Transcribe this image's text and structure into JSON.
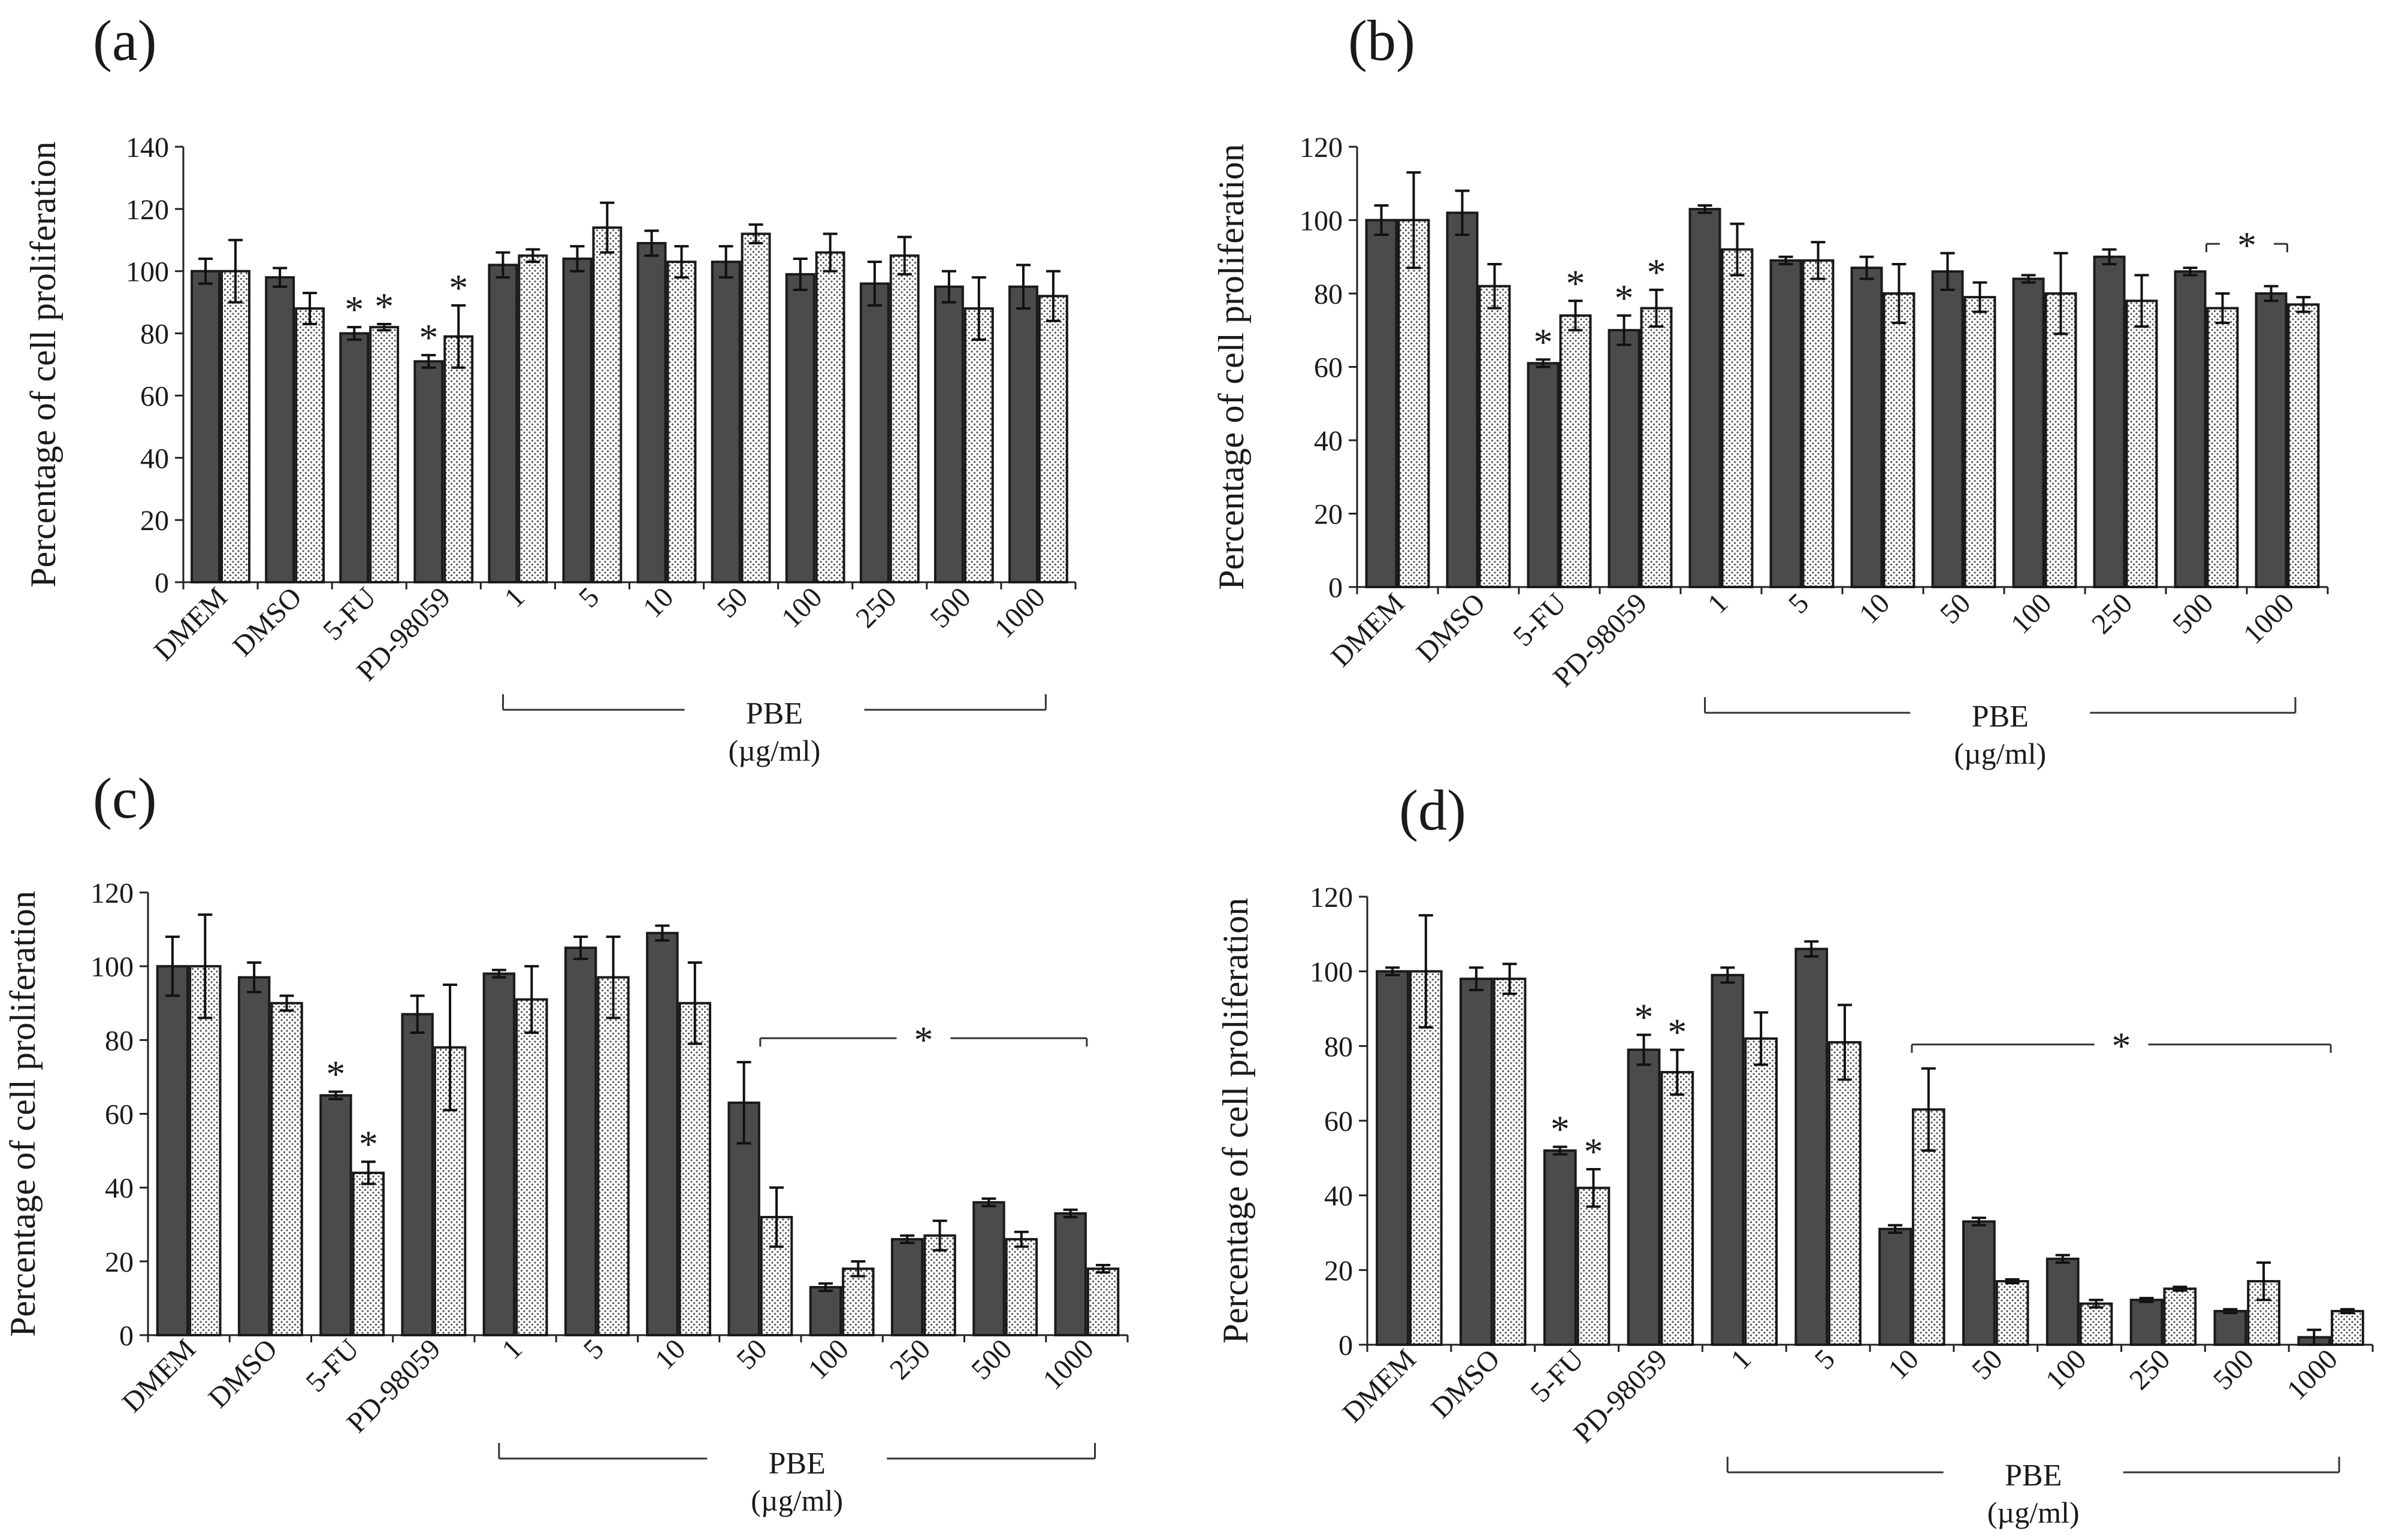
{
  "chart_data": [
    {
      "panel": "(a)",
      "type": "bar",
      "ylabel": "Percentage of cell proliferation",
      "ylim": [
        0,
        140
      ],
      "yticks": [
        "0",
        "20",
        "40",
        "60",
        "80",
        "100",
        "120",
        "140"
      ],
      "categories": [
        "DMEM",
        "DMSO",
        "5-FU",
        "PD-98059",
        "1",
        "5",
        "10",
        "50",
        "100",
        "250",
        "500",
        "1000"
      ],
      "group_label": "PBE",
      "group_unit": "(µg/ml)",
      "series": [
        {
          "style": "dark",
          "values": [
            100,
            98,
            80,
            71,
            102,
            104,
            109,
            103,
            99,
            96,
            95,
            95
          ],
          "errors": [
            4,
            3,
            2,
            2,
            4,
            4,
            4,
            5,
            5,
            7,
            5,
            7
          ]
        },
        {
          "style": "dotted",
          "values": [
            100,
            88,
            82,
            79,
            105,
            114,
            103,
            112,
            106,
            105,
            88,
            92
          ],
          "errors": [
            10,
            5,
            1,
            10,
            2,
            8,
            5,
            3,
            6,
            6,
            10,
            8
          ]
        }
      ],
      "stars": [
        {
          "index": 2,
          "series": 0
        },
        {
          "index": 2,
          "series": 1
        },
        {
          "index": 3,
          "series": 0
        },
        {
          "index": 3,
          "series": 1
        }
      ],
      "star_symbol": "*",
      "significance_bracket": null
    },
    {
      "panel": "(b)",
      "type": "bar",
      "ylabel": "Percentage of cell proliferation",
      "ylim": [
        0,
        120
      ],
      "yticks": [
        "0",
        "20",
        "40",
        "60",
        "80",
        "100",
        "120"
      ],
      "categories": [
        "DMEM",
        "DMSO",
        "5-FU",
        "PD-98059",
        "1",
        "5",
        "10",
        "50",
        "100",
        "250",
        "500",
        "1000"
      ],
      "group_label": "PBE",
      "group_unit": "(µg/ml)",
      "series": [
        {
          "style": "dark",
          "values": [
            100,
            102,
            61,
            70,
            103,
            89,
            87,
            86,
            84,
            90,
            86,
            80
          ],
          "errors": [
            4,
            6,
            1,
            4,
            1,
            1,
            3,
            5,
            1,
            2,
            1,
            2
          ]
        },
        {
          "style": "dotted",
          "values": [
            100,
            82,
            74,
            76,
            92,
            89,
            80,
            79,
            80,
            78,
            76,
            77
          ],
          "errors": [
            13,
            6,
            4,
            5,
            7,
            5,
            8,
            4,
            11,
            7,
            4,
            2
          ]
        }
      ],
      "stars": [
        {
          "index": 2,
          "series": 0
        },
        {
          "index": 2,
          "series": 1
        },
        {
          "index": 3,
          "series": 0
        },
        {
          "index": 3,
          "series": 1
        }
      ],
      "star_symbol": "*",
      "significance_bracket": {
        "from": 10,
        "to": 11,
        "label": "*"
      }
    },
    {
      "panel": "(c)",
      "type": "bar",
      "ylabel": "Percentage of cell proliferation",
      "ylim": [
        0,
        120
      ],
      "yticks": [
        "0",
        "20",
        "40",
        "60",
        "80",
        "100",
        "120"
      ],
      "categories": [
        "DMEM",
        "DMSO",
        "5-FU",
        "PD-98059",
        "1",
        "5",
        "10",
        "50",
        "100",
        "250",
        "500",
        "1000"
      ],
      "group_label": "PBE",
      "group_unit": "(µg/ml)",
      "series": [
        {
          "style": "dark",
          "values": [
            100,
            97,
            65,
            87,
            98,
            105,
            109,
            63,
            13,
            26,
            36,
            33
          ],
          "errors": [
            8,
            4,
            1,
            5,
            1,
            3,
            2,
            11,
            1,
            1,
            1,
            1
          ]
        },
        {
          "style": "dotted",
          "values": [
            100,
            90,
            44,
            78,
            91,
            97,
            90,
            32,
            18,
            27,
            26,
            18
          ],
          "errors": [
            14,
            2,
            3,
            17,
            9,
            11,
            11,
            8,
            2,
            4,
            2,
            1
          ]
        }
      ],
      "stars": [
        {
          "index": 2,
          "series": 0
        },
        {
          "index": 2,
          "series": 1
        }
      ],
      "star_symbol": "*",
      "significance_bracket": {
        "from": 7,
        "to": 11,
        "label": "*"
      }
    },
    {
      "panel": "(d)",
      "type": "bar",
      "ylabel": "Percentage of cell proliferation",
      "ylim": [
        0,
        120
      ],
      "yticks": [
        "0",
        "20",
        "40",
        "60",
        "80",
        "100",
        "120"
      ],
      "categories": [
        "DMEM",
        "DMSO",
        "5-FU",
        "PD-98059",
        "1",
        "5",
        "10",
        "50",
        "100",
        "250",
        "500",
        "1000"
      ],
      "group_label": "PBE",
      "group_unit": "(µg/ml)",
      "series": [
        {
          "style": "dark",
          "values": [
            100,
            98,
            52,
            79,
            99,
            106,
            31,
            33,
            23,
            12,
            9,
            2
          ],
          "errors": [
            1,
            3,
            1,
            4,
            2,
            2,
            1,
            1,
            1,
            0.5,
            0.5,
            2
          ]
        },
        {
          "style": "dotted",
          "values": [
            100,
            98,
            42,
            73,
            82,
            81,
            63,
            17,
            11,
            15,
            17,
            9
          ],
          "errors": [
            15,
            4,
            5,
            6,
            7,
            10,
            11,
            0.5,
            1,
            0.5,
            5,
            0.5
          ]
        }
      ],
      "stars": [
        {
          "index": 2,
          "series": 0
        },
        {
          "index": 2,
          "series": 1
        },
        {
          "index": 3,
          "series": 0
        },
        {
          "index": 3,
          "series": 1
        }
      ],
      "star_symbol": "*",
      "significance_bracket": {
        "from": 6,
        "to": 11,
        "label": "*"
      }
    }
  ]
}
